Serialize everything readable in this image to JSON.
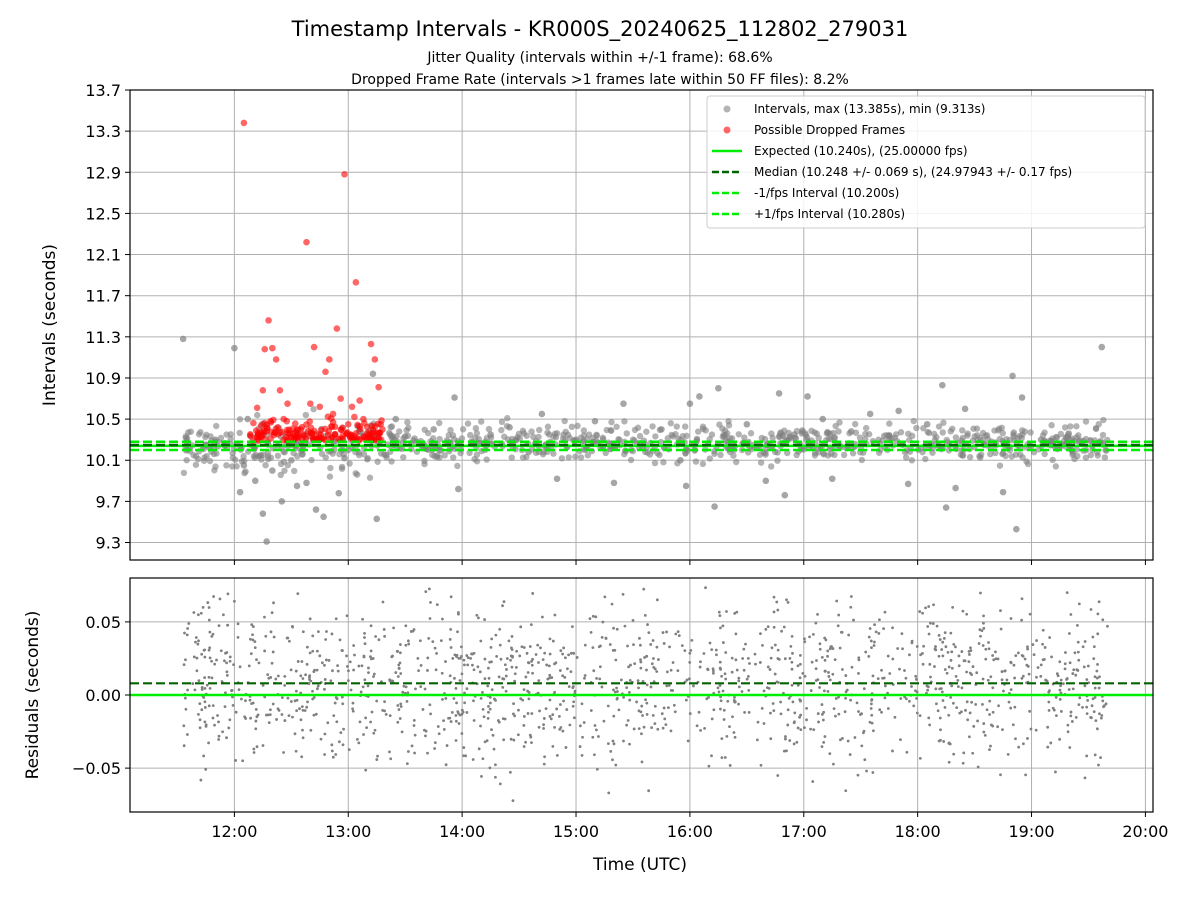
{
  "chart_data": [
    {
      "type": "scatter",
      "title": "Timestamp Intervals - KR000S_20240625_112802_279031",
      "subtitle": [
        "Jitter Quality (intervals within +/-1 frame): 68.6%",
        "Dropped Frame Rate (intervals >1 frames late within 50 FF files): 8.2%"
      ],
      "xlabel": "",
      "ylabel": "Intervals (seconds)",
      "ylim": [
        9.13,
        13.7
      ],
      "yticks": [
        "9.3",
        "9.7",
        "10.1",
        "10.5",
        "10.9",
        "11.3",
        "11.7",
        "12.1",
        "12.5",
        "12.9",
        "13.3",
        "13.7"
      ],
      "xlim": [
        "11:05",
        "20:04"
      ],
      "grid": true,
      "legend_position": "top-right",
      "legend": [
        "Intervals, max (13.385s), min (9.313s)",
        "Possible Dropped Frames",
        "Expected (10.240s), (25.00000 fps)",
        "Median (10.248 +/- 0.069 s), (24.97943 +/- 0.17 fps)",
        "-1/fps Interval (10.200s)",
        "+1/fps Interval (10.280s)"
      ],
      "colors": {
        "intervals": "#808080",
        "dropped": "#ff0000",
        "expected": "#00ee00",
        "median": "#006400",
        "band": "#00ee00"
      },
      "reference_lines": {
        "expected": 10.24,
        "median": 10.248,
        "minus_1fps": 10.2,
        "plus_1fps": 10.28
      },
      "series": [
        {
          "name": "Intervals, max (13.385s), min (9.313s)",
          "points": [
            [
              "11:33",
              11.28
            ],
            [
              "11:35",
              10.28
            ],
            [
              "11:45",
              10.25
            ],
            [
              "11:50",
              10.3
            ],
            [
              "12:00",
              11.19
            ],
            [
              "12:03",
              9.79
            ],
            [
              "12:05",
              10.05
            ],
            [
              "12:07",
              10.5
            ],
            [
              "12:11",
              9.9
            ],
            [
              "12:15",
              9.58
            ],
            [
              "12:17",
              9.31
            ],
            [
              "12:20",
              10.0
            ],
            [
              "12:25",
              9.7
            ],
            [
              "12:30",
              10.1
            ],
            [
              "12:33",
              9.85
            ],
            [
              "12:38",
              9.88
            ],
            [
              "12:43",
              9.62
            ],
            [
              "12:47",
              9.55
            ],
            [
              "12:55",
              9.78
            ],
            [
              "12:58",
              10.12
            ],
            [
              "13:00",
              10.2
            ],
            [
              "13:05",
              10.43
            ],
            [
              "13:11",
              10.38
            ],
            [
              "13:13",
              10.94
            ],
            [
              "13:15",
              9.53
            ],
            [
              "13:20",
              10.15
            ],
            [
              "13:25",
              10.5
            ],
            [
              "13:30",
              10.33
            ],
            [
              "13:40",
              10.22
            ],
            [
              "13:45",
              10.4
            ],
            [
              "13:56",
              10.71
            ],
            [
              "13:58",
              9.82
            ],
            [
              "14:05",
              10.28
            ],
            [
              "14:15",
              10.35
            ],
            [
              "14:25",
              10.42
            ],
            [
              "14:35",
              10.18
            ],
            [
              "14:42",
              10.55
            ],
            [
              "14:50",
              9.92
            ],
            [
              "15:00",
              10.3
            ],
            [
              "15:10",
              10.48
            ],
            [
              "15:20",
              9.88
            ],
            [
              "15:25",
              10.65
            ],
            [
              "15:35",
              10.22
            ],
            [
              "15:45",
              10.4
            ],
            [
              "15:55",
              10.1
            ],
            [
              "15:58",
              9.85
            ],
            [
              "16:00",
              10.65
            ],
            [
              "16:05",
              10.72
            ],
            [
              "16:13",
              9.65
            ],
            [
              "16:15",
              10.8
            ],
            [
              "16:20",
              10.28
            ],
            [
              "16:30",
              10.45
            ],
            [
              "16:40",
              9.9
            ],
            [
              "16:47",
              10.75
            ],
            [
              "16:50",
              9.76
            ],
            [
              "16:55",
              10.35
            ],
            [
              "17:02",
              10.72
            ],
            [
              "17:05",
              10.22
            ],
            [
              "17:10",
              10.5
            ],
            [
              "17:15",
              9.92
            ],
            [
              "17:25",
              10.38
            ],
            [
              "17:35",
              10.55
            ],
            [
              "17:45",
              10.3
            ],
            [
              "17:50",
              10.58
            ],
            [
              "17:55",
              9.87
            ],
            [
              "18:05",
              10.45
            ],
            [
              "18:13",
              10.83
            ],
            [
              "18:15",
              9.64
            ],
            [
              "18:20",
              9.83
            ],
            [
              "18:25",
              10.6
            ],
            [
              "18:35",
              10.25
            ],
            [
              "18:45",
              9.79
            ],
            [
              "18:50",
              10.92
            ],
            [
              "18:52",
              9.43
            ],
            [
              "18:55",
              10.71
            ],
            [
              "19:05",
              10.3
            ],
            [
              "19:15",
              10.25
            ],
            [
              "19:25",
              10.28
            ],
            [
              "19:37",
              11.2
            ]
          ]
        },
        {
          "name": "Possible Dropped Frames",
          "points": [
            [
              "12:05",
              13.38
            ],
            [
              "12:12",
              10.61
            ],
            [
              "12:15",
              10.78
            ],
            [
              "12:16",
              11.18
            ],
            [
              "12:18",
              11.46
            ],
            [
              "12:20",
              11.19
            ],
            [
              "12:22",
              11.08
            ],
            [
              "12:24",
              10.78
            ],
            [
              "12:26",
              10.5
            ],
            [
              "12:28",
              10.65
            ],
            [
              "12:30",
              10.33
            ],
            [
              "12:35",
              10.4
            ],
            [
              "12:38",
              12.22
            ],
            [
              "12:40",
              10.65
            ],
            [
              "12:42",
              11.2
            ],
            [
              "12:45",
              10.62
            ],
            [
              "12:48",
              10.96
            ],
            [
              "12:50",
              11.08
            ],
            [
              "12:52",
              10.55
            ],
            [
              "12:54",
              11.38
            ],
            [
              "12:56",
              10.7
            ],
            [
              "12:58",
              12.88
            ],
            [
              "13:00",
              10.45
            ],
            [
              "13:02",
              10.62
            ],
            [
              "13:04",
              11.83
            ],
            [
              "13:06",
              10.68
            ],
            [
              "13:08",
              10.5
            ],
            [
              "13:10",
              10.3
            ],
            [
              "13:12",
              11.23
            ],
            [
              "13:14",
              11.08
            ],
            [
              "13:16",
              10.81
            ],
            [
              "13:18",
              10.4
            ]
          ]
        }
      ]
    },
    {
      "type": "scatter",
      "xlabel": "Time (UTC)",
      "ylabel": "Residuals (seconds)",
      "ylim": [
        -0.08,
        0.08
      ],
      "yticks": [
        "−0.05",
        "0.00",
        "0.05"
      ],
      "xticks": [
        "12:00",
        "13:00",
        "14:00",
        "15:00",
        "16:00",
        "17:00",
        "18:00",
        "19:00",
        "20:00"
      ],
      "grid": true,
      "reference_lines": {
        "zero": 0.0,
        "median_offset": 0.008
      },
      "series": [
        {
          "name": "",
          "color": "#808080",
          "y_range": [
            -0.08,
            0.08
          ]
        }
      ]
    }
  ]
}
